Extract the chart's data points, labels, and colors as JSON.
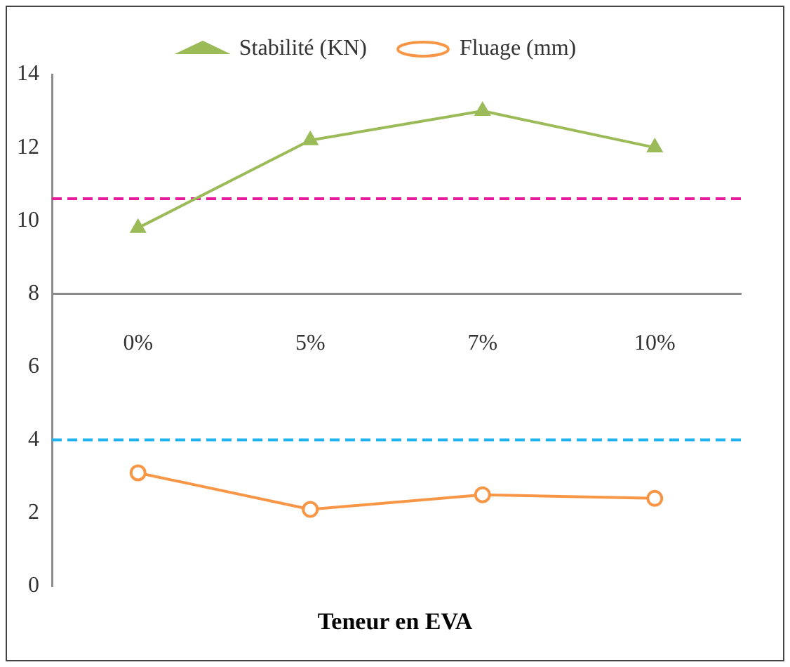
{
  "chart_data": {
    "type": "line",
    "xlabel": "Teneur en EVA",
    "categories": [
      "0%",
      "5%",
      "7%",
      "10%"
    ],
    "series": [
      {
        "name": "Stabilité (KN)",
        "color": "#9bbb59",
        "values": [
          9.8,
          12.2,
          13.0,
          12.0
        ],
        "marker": "triangle"
      },
      {
        "name": "Fluage (mm)",
        "color": "#f79646",
        "values": [
          3.1,
          2.1,
          2.5,
          2.4
        ],
        "marker": "circle"
      }
    ],
    "ylim": [
      0,
      14
    ],
    "yticks": [
      0,
      2,
      4,
      6,
      8,
      10,
      12,
      14
    ],
    "grid": false,
    "legend": "top",
    "line_style": "solid",
    "ref_lines": [
      {
        "axis": "y",
        "value": 10.6,
        "color": "#e61e9e",
        "line_style": "dashed"
      },
      {
        "axis": "y",
        "value": 4,
        "color": "#1fb4ef",
        "line_style": "dashed"
      }
    ]
  }
}
